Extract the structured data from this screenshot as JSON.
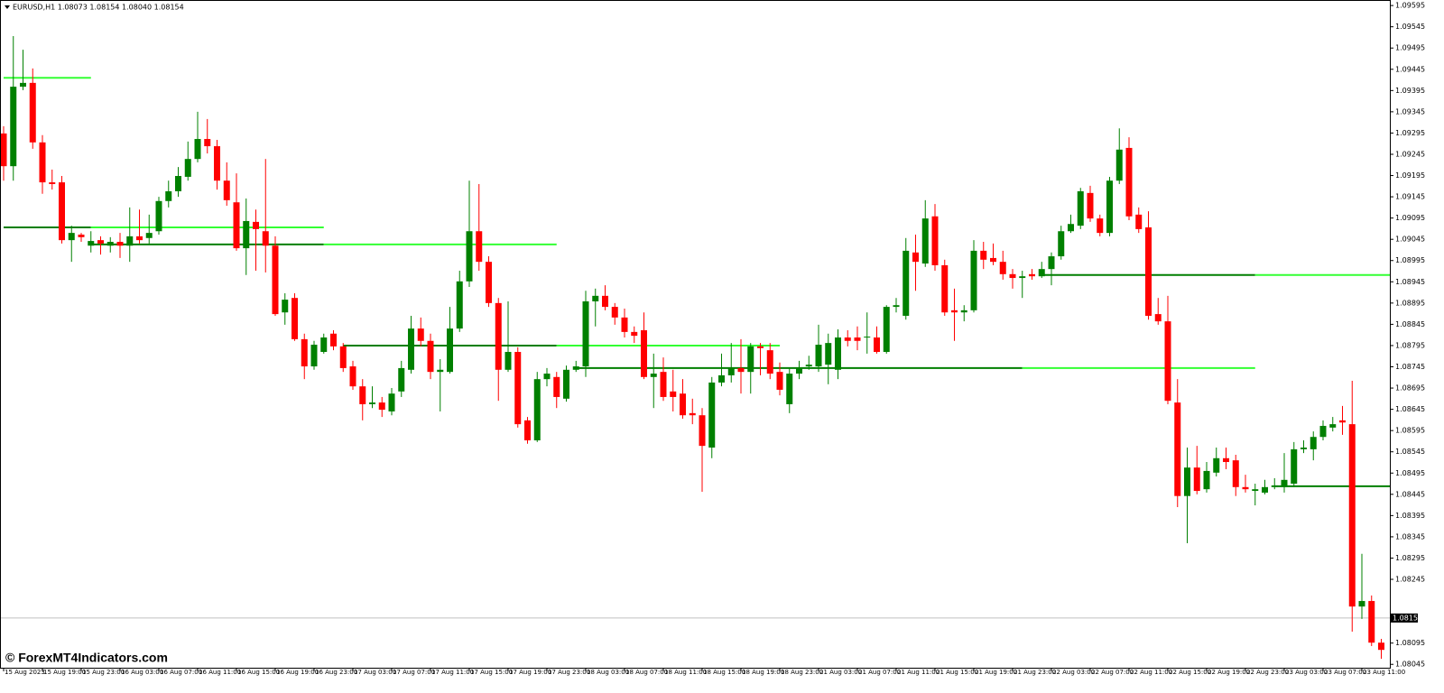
{
  "chart_data": {
    "type": "candlestick",
    "title": "EURUSD,H1  1.08073 1.08154 1.08040 1.08154",
    "watermark": "© ForexMT4Indicators.com",
    "up_color": "#008000",
    "down_color": "#ff0000",
    "ylim": [
      1.08037,
      1.09608
    ],
    "yticks": [
      1.09595,
      1.09545,
      1.09495,
      1.09445,
      1.09395,
      1.09345,
      1.09295,
      1.09245,
      1.09195,
      1.09145,
      1.09095,
      1.09045,
      1.08995,
      1.08945,
      1.08895,
      1.08845,
      1.08795,
      1.08745,
      1.08695,
      1.08645,
      1.08595,
      1.08545,
      1.08495,
      1.08445,
      1.08395,
      1.08345,
      1.08295,
      1.08245,
      1.08095,
      1.08045
    ],
    "current_price": 1.08154,
    "categories": [
      "15 Aug 2023",
      null,
      null,
      null,
      "15 Aug 19:00",
      null,
      null,
      null,
      "15 Aug 23:00",
      null,
      null,
      null,
      "16 Aug 03:00",
      null,
      null,
      null,
      "16 Aug 07:00",
      null,
      null,
      null,
      "16 Aug 11:00",
      null,
      null,
      null,
      "16 Aug 15:00",
      null,
      null,
      null,
      "16 Aug 19:00",
      null,
      null,
      null,
      "16 Aug 23:00",
      null,
      null,
      null,
      "17 Aug 03:00",
      null,
      null,
      null,
      "17 Aug 07:00",
      null,
      null,
      null,
      "17 Aug 11:00",
      null,
      null,
      null,
      "17 Aug 15:00",
      null,
      null,
      null,
      "17 Aug 19:00",
      null,
      null,
      null,
      "17 Aug 23:00",
      null,
      null,
      null,
      "18 Aug 03:00",
      null,
      null,
      null,
      "18 Aug 07:00",
      null,
      null,
      null,
      "18 Aug 11:00",
      null,
      null,
      null,
      "18 Aug 15:00",
      null,
      null,
      null,
      "18 Aug 19:00",
      null,
      null,
      null,
      "18 Aug 23:00",
      null,
      null,
      null,
      "21 Aug 03:00",
      null,
      null,
      null,
      "21 Aug 07:00",
      null,
      null,
      null,
      "21 Aug 11:00",
      null,
      null,
      null,
      "21 Aug 15:00",
      null,
      null,
      null,
      "21 Aug 19:00",
      null,
      null,
      null,
      "21 Aug 23:00",
      null,
      null,
      null,
      "22 Aug 03:00",
      null,
      null,
      null,
      "22 Aug 07:00",
      null,
      null,
      null,
      "22 Aug 11:00",
      null,
      null,
      null,
      "22 Aug 15:00",
      null,
      null,
      null,
      "22 Aug 19:00",
      null,
      null,
      null,
      "22 Aug 23:00",
      null,
      null,
      null,
      "23 Aug 03:00",
      null,
      null,
      null,
      "23 Aug 07:00",
      null,
      null,
      null,
      "23 Aug 11:00",
      null,
      null
    ],
    "open": [
      1.09294,
      1.09217,
      1.09404,
      1.09413,
      1.09273,
      1.09179,
      1.09179,
      1.09043,
      1.09056,
      1.0903,
      1.09043,
      1.0903,
      1.09039,
      1.0903,
      1.09052,
      1.09048,
      1.09064,
      1.09135,
      1.09158,
      1.09192,
      1.09234,
      1.09281,
      1.09264,
      1.09183,
      1.09132,
      1.09024,
      1.09086,
      1.09064,
      1.0903,
      1.08873,
      1.08907,
      1.0881,
      1.08746,
      1.0878,
      1.08823,
      1.08793,
      1.08746,
      1.08699,
      1.08657,
      1.08661,
      1.0864,
      1.08687,
      1.08738,
      1.08835,
      1.08806,
      1.08733,
      1.08733,
      1.08835,
      1.08946,
      1.09064,
      1.08992,
      1.08895,
      1.08738,
      1.0878,
      1.08619,
      1.08572,
      1.08716,
      1.08721,
      1.0867,
      1.08738,
      1.08746,
      1.08899,
      1.08912,
      1.08886,
      1.08861,
      1.08827,
      1.08831,
      1.08721,
      1.08733,
      1.08687,
      1.08682,
      1.08636,
      1.08631,
      1.08555,
      1.08708,
      1.08725,
      1.08742,
      1.08733,
      1.08793,
      1.08784,
      1.08733,
      1.08657,
      1.08729,
      1.08746,
      1.08746,
      1.0875,
      1.08738,
      1.08814,
      1.08814,
      1.08814,
      1.08814,
      1.0878,
      1.08886,
      1.08865,
      1.09014,
      1.08988,
      1.09099,
      1.08984,
      1.08878,
      1.08873,
      1.08878,
      1.09018,
      1.09001,
      1.08992,
      1.08963,
      1.08954,
      1.08963,
      1.08958,
      1.08975,
      1.09005,
      1.09064,
      1.09077,
      1.09154,
      1.09094,
      1.0906,
      1.09183,
      1.0926,
      1.09103,
      1.09073,
      1.08869,
      1.08852,
      1.08661,
      1.08441,
      1.08508,
      1.08457,
      1.08496,
      1.0853,
      1.08525,
      1.08462,
      1.08453,
      1.08449,
      1.08462,
      1.08462,
      1.0847,
      1.08551,
      1.08551,
      1.0858,
      1.08602,
      1.08619,
      1.0861,
      1.08181,
      1.08194,
      1.08096
    ],
    "high": [
      1.09311,
      1.09523,
      1.09491,
      1.09447,
      1.0929,
      1.09209,
      1.09194,
      1.09077,
      1.0906,
      1.09064,
      1.09052,
      1.0905,
      1.0906,
      1.0912,
      1.09115,
      1.09103,
      1.09145,
      1.09183,
      1.09215,
      1.09275,
      1.09345,
      1.09328,
      1.09279,
      1.09226,
      1.092,
      1.09141,
      1.09115,
      1.09234,
      1.09052,
      1.08918,
      1.08918,
      1.08823,
      1.08806,
      1.08823,
      1.08831,
      1.08801,
      1.08759,
      1.08716,
      1.08699,
      1.08674,
      1.08695,
      1.08759,
      1.08865,
      1.08861,
      1.08823,
      1.08763,
      1.08886,
      1.08971,
      1.09183,
      1.09175,
      1.09005,
      1.08907,
      1.08899,
      1.08791,
      1.08627,
      1.08733,
      1.08742,
      1.08733,
      1.08748,
      1.08759,
      1.08924,
      1.08929,
      1.08937,
      1.08895,
      1.08882,
      1.0884,
      1.08873,
      1.08776,
      1.08767,
      1.08738,
      1.08716,
      1.0867,
      1.08648,
      1.08721,
      1.08776,
      1.08801,
      1.0881,
      1.08801,
      1.08801,
      1.08801,
      1.08755,
      1.08742,
      1.08759,
      1.08771,
      1.08844,
      1.08823,
      1.08833,
      1.08831,
      1.0884,
      1.08873,
      1.0884,
      1.0889,
      1.08907,
      1.09048,
      1.09056,
      1.09137,
      1.09128,
      1.08997,
      1.08929,
      1.0889,
      1.09043,
      1.09039,
      1.09035,
      1.09018,
      1.08975,
      1.08971,
      1.08975,
      1.08992,
      1.09014,
      1.09077,
      1.09103,
      1.09166,
      1.09171,
      1.09103,
      1.09192,
      1.09306,
      1.09285,
      1.0912,
      1.09111,
      1.08907,
      1.08912,
      1.08716,
      1.08555,
      1.08559,
      1.08521,
      1.08555,
      1.08555,
      1.08538,
      1.08491,
      1.0847,
      1.08479,
      1.08483,
      1.08542,
      1.08568,
      1.08572,
      1.08593,
      1.08619,
      1.08627,
      1.08653,
      1.08712,
      1.08305,
      1.08207,
      1.08105
    ],
    "low": [
      1.09183,
      1.09183,
      1.09396,
      1.09258,
      1.09152,
      1.09162,
      1.09035,
      1.08992,
      1.09039,
      1.09014,
      1.09009,
      1.09014,
      1.09001,
      1.08992,
      1.09035,
      1.09035,
      1.09056,
      1.0912,
      1.09145,
      1.09183,
      1.09226,
      1.09247,
      1.09162,
      1.09124,
      1.09018,
      1.08961,
      1.08971,
      1.08967,
      1.08865,
      1.08844,
      1.08806,
      1.08716,
      1.08738,
      1.08776,
      1.08784,
      1.08733,
      1.08691,
      1.08619,
      1.08648,
      1.08627,
      1.08631,
      1.08674,
      1.08729,
      1.08793,
      1.08716,
      1.0864,
      1.08729,
      1.08827,
      1.08933,
      1.08971,
      1.08886,
      1.08665,
      1.08733,
      1.08602,
      1.08564,
      1.08568,
      1.08699,
      1.08648,
      1.08663,
      1.08733,
      1.08721,
      1.0884,
      1.08878,
      1.08844,
      1.08814,
      1.08801,
      1.08716,
      1.08648,
      1.08665,
      1.0864,
      1.08623,
      1.0861,
      1.08451,
      1.0853,
      1.08699,
      1.08708,
      1.08682,
      1.08682,
      1.08725,
      1.08716,
      1.08678,
      1.08636,
      1.08716,
      1.08738,
      1.08733,
      1.08704,
      1.08716,
      1.08793,
      1.08784,
      1.08776,
      1.08776,
      1.08776,
      1.08873,
      1.08856,
      1.08924,
      1.0898,
      1.08971,
      1.08865,
      1.08806,
      1.08852,
      1.08873,
      1.08975,
      1.08984,
      1.0895,
      1.08929,
      1.08907,
      1.0895,
      1.08954,
      1.08937,
      1.08997,
      1.0906,
      1.09069,
      1.09086,
      1.09052,
      1.09052,
      1.09175,
      1.0909,
      1.0906,
      1.08856,
      1.08844,
      1.08657,
      1.08415,
      1.0833,
      1.08445,
      1.08449,
      1.08487,
      1.08504,
      1.08441,
      1.08449,
      1.08419,
      1.08445,
      1.08457,
      1.08449,
      1.08462,
      1.08542,
      1.08525,
      1.08572,
      1.08593,
      1.08585,
      1.08122,
      1.08152,
      1.08088,
      1.08058
    ],
    "close": [
      1.09217,
      1.09404,
      1.09413,
      1.09273,
      1.09179,
      1.09175,
      1.09043,
      1.0906,
      1.0905,
      1.09041,
      1.09035,
      1.09039,
      1.0903,
      1.09052,
      1.09043,
      1.0906,
      1.09135,
      1.09158,
      1.09194,
      1.09234,
      1.09281,
      1.09264,
      1.09183,
      1.09137,
      1.09024,
      1.09088,
      1.09069,
      1.0903,
      1.08869,
      1.08903,
      1.0881,
      1.08746,
      1.08797,
      1.08814,
      1.08793,
      1.08742,
      1.08699,
      1.08657,
      1.08661,
      1.08644,
      1.08682,
      1.08742,
      1.08835,
      1.08806,
      1.08733,
      1.08738,
      1.08835,
      1.08946,
      1.09064,
      1.08992,
      1.08895,
      1.08738,
      1.0878,
      1.0861,
      1.08572,
      1.08716,
      1.08729,
      1.08674,
      1.08738,
      1.08746,
      1.08899,
      1.08912,
      1.08886,
      1.08861,
      1.08827,
      1.08818,
      1.08721,
      1.08729,
      1.08674,
      1.08674,
      1.08631,
      1.08631,
      1.08559,
      1.08708,
      1.08725,
      1.08742,
      1.08733,
      1.08793,
      1.08789,
      1.08729,
      1.08691,
      1.08729,
      1.08742,
      1.0875,
      1.08797,
      1.08801,
      1.08814,
      1.08806,
      1.08806,
      1.08816,
      1.0878,
      1.08886,
      1.0889,
      1.09018,
      1.08992,
      1.09094,
      1.08984,
      1.08873,
      1.08873,
      1.08878,
      1.09018,
      1.08997,
      1.08992,
      1.08963,
      1.08954,
      1.08958,
      1.08958,
      1.08975,
      1.09005,
      1.09064,
      1.09081,
      1.09158,
      1.09094,
      1.0906,
      1.09183,
      1.09256,
      1.09099,
      1.09069,
      1.08865,
      1.08852,
      1.08665,
      1.08441,
      1.08508,
      1.08453,
      1.085,
      1.0853,
      1.08521,
      1.08462,
      1.08457,
      1.08457,
      1.08462,
      1.08466,
      1.08479,
      1.08551,
      1.08555,
      1.0858,
      1.08606,
      1.0861,
      1.08614,
      1.08181,
      1.08194,
      1.08096,
      1.08079
    ],
    "levels": [
      {
        "value": 1.09425,
        "from": 0,
        "to": 9,
        "color": "#33ff33"
      },
      {
        "value": 1.09073,
        "from": 0,
        "to": 9,
        "color": "#007f00"
      },
      {
        "value": 1.09073,
        "from": 9,
        "to": 33,
        "color": "#33ff33"
      },
      {
        "value": 1.09033,
        "from": 9,
        "to": 33,
        "color": "#007f00"
      },
      {
        "value": 1.09033,
        "from": 33,
        "to": 57,
        "color": "#33ff33"
      },
      {
        "value": 1.08795,
        "from": 35,
        "to": 57,
        "color": "#007f00"
      },
      {
        "value": 1.08795,
        "from": 57,
        "to": 80,
        "color": "#33ff33"
      },
      {
        "value": 1.08742,
        "from": 59,
        "to": 105,
        "color": "#007f00"
      },
      {
        "value": 1.08742,
        "from": 105,
        "to": 129,
        "color": "#33ff33"
      },
      {
        "value": 1.08961,
        "from": 107,
        "to": 129,
        "color": "#007f00"
      },
      {
        "value": 1.08961,
        "from": 129,
        "to": 146,
        "color": "#33ff33"
      },
      {
        "value": 1.08464,
        "from": 131,
        "to": 146,
        "color": "#007f00"
      }
    ]
  }
}
